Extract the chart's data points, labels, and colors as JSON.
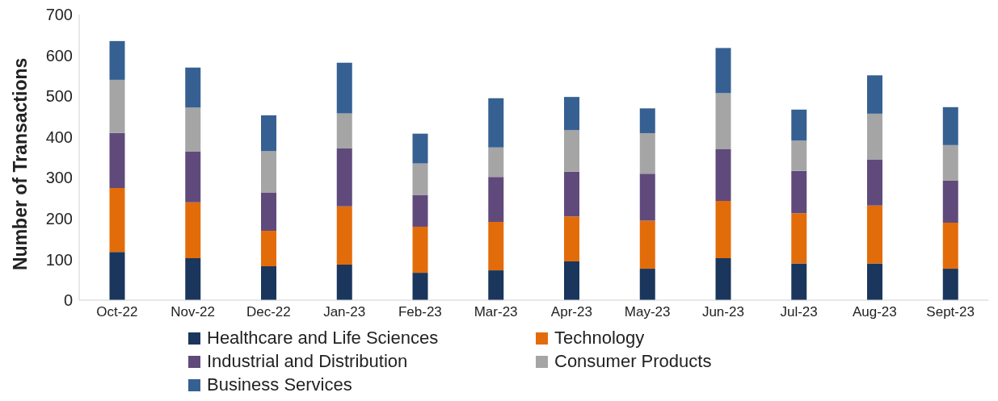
{
  "chart_data": {
    "type": "bar",
    "stacked": true,
    "ylabel": "Number of Transactions",
    "categories": [
      "Oct-22",
      "Nov-22",
      "Dec-22",
      "Jan-23",
      "Feb-23",
      "Mar-23",
      "Apr-23",
      "May-23",
      "Jun-23",
      "Jul-23",
      "Aug-23",
      "Sept-23"
    ],
    "series": [
      {
        "name": "Healthcare and Life Sciences",
        "color": "#1b365d",
        "values": [
          118,
          103,
          83,
          87,
          67,
          73,
          95,
          77,
          103,
          90,
          90,
          77
        ]
      },
      {
        "name": "Technology",
        "color": "#e36c0a",
        "values": [
          157,
          137,
          87,
          143,
          113,
          119,
          110,
          118,
          140,
          123,
          142,
          113
        ]
      },
      {
        "name": "Industrial and Distribution",
        "color": "#604a7b",
        "values": [
          135,
          125,
          93,
          142,
          78,
          110,
          110,
          115,
          127,
          104,
          113,
          103
        ]
      },
      {
        "name": "Consumer Products",
        "color": "#a5a5a5",
        "values": [
          130,
          107,
          102,
          86,
          77,
          72,
          102,
          99,
          137,
          74,
          112,
          87
        ]
      },
      {
        "name": "Business Services",
        "color": "#366092",
        "values": [
          95,
          98,
          88,
          124,
          73,
          121,
          81,
          61,
          111,
          76,
          94,
          93
        ]
      }
    ],
    "ylim": [
      0,
      700
    ],
    "yticks": [
      0,
      100,
      200,
      300,
      400,
      500,
      600,
      700
    ],
    "grid": false,
    "legend": "bottom"
  }
}
